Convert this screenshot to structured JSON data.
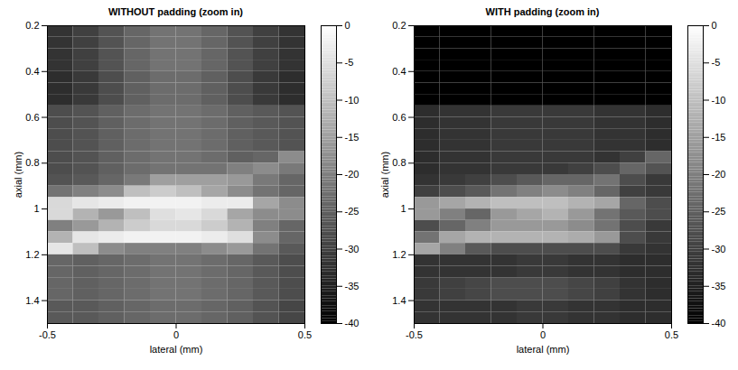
{
  "chart_data": [
    {
      "type": "heatmap",
      "title": "WITHOUT padding (zoom in)",
      "x_label": "lateral (mm)",
      "y_label": "axial (mm)",
      "xlim": [
        -0.5,
        0.5
      ],
      "xticks": [
        -0.5,
        0,
        0.5
      ],
      "ylim": [
        0.2,
        1.5
      ],
      "yticks": [
        0.2,
        0.4,
        0.6,
        0.8,
        1,
        1.2,
        1.4
      ],
      "cells": {
        "x_edges": [
          -0.5,
          -0.4,
          -0.3,
          -0.2,
          -0.1,
          0,
          0.1,
          0.2,
          0.3,
          0.4,
          0.5
        ],
        "y_edges": [
          0.2,
          0.25,
          0.3,
          0.35,
          0.4,
          0.45,
          0.5,
          0.55,
          0.6,
          0.65,
          0.7,
          0.75,
          0.8,
          0.85,
          0.9,
          0.95,
          1,
          1.05,
          1.1,
          1.15,
          1.2,
          1.25,
          1.3,
          1.35,
          1.4,
          1.45,
          1.5
        ],
        "values": [
          [
            -32,
            -30,
            -27,
            -24,
            -22,
            -22,
            -24,
            -27,
            -30,
            -32
          ],
          [
            -32,
            -30,
            -27,
            -24,
            -22,
            -22,
            -24,
            -27,
            -30,
            -32
          ],
          [
            -32,
            -30,
            -27,
            -24,
            -22,
            -22,
            -24,
            -27,
            -30,
            -32
          ],
          [
            -32,
            -30,
            -27,
            -24,
            -22,
            -22,
            -24,
            -27,
            -30,
            -32
          ],
          [
            -33,
            -31,
            -28,
            -25,
            -23,
            -23,
            -25,
            -28,
            -31,
            -33
          ],
          [
            -33,
            -31,
            -28,
            -25,
            -23,
            -23,
            -25,
            -28,
            -31,
            -33
          ],
          [
            -33,
            -31,
            -28,
            -25,
            -23,
            -23,
            -25,
            -28,
            -31,
            -33
          ],
          [
            -28,
            -27,
            -25,
            -23,
            -22,
            -22,
            -23,
            -25,
            -26,
            -27
          ],
          [
            -28,
            -27,
            -25,
            -23,
            -22,
            -22,
            -23,
            -25,
            -26,
            -27
          ],
          [
            -28,
            -27,
            -25,
            -23,
            -22,
            -22,
            -23,
            -25,
            -26,
            -27
          ],
          [
            -28,
            -27,
            -25,
            -23,
            -22,
            -22,
            -23,
            -25,
            -26,
            -27
          ],
          [
            -28,
            -27,
            -25,
            -23,
            -22,
            -22,
            -23,
            -25,
            -24,
            -18
          ],
          [
            -28,
            -27,
            -25,
            -23,
            -22,
            -22,
            -22,
            -20,
            -18,
            -21
          ],
          [
            -27,
            -26,
            -24,
            -21,
            -15,
            -15,
            -15,
            -16,
            -21,
            -24
          ],
          [
            -22,
            -20,
            -18,
            -10,
            -8,
            -10,
            -14,
            -18,
            -22,
            -24
          ],
          [
            -6,
            -4,
            -3,
            -2,
            -2,
            -2,
            -3,
            -3,
            -14,
            -18
          ],
          [
            -6,
            -12,
            -16,
            -10,
            -5,
            -4,
            -6,
            -14,
            -18,
            -18
          ],
          [
            -20,
            -16,
            -12,
            -8,
            -6,
            -6,
            -8,
            -12,
            -20,
            -24
          ],
          [
            -12,
            -4,
            -3,
            -2,
            -2,
            -2,
            -3,
            -5,
            -18,
            -24
          ],
          [
            -4,
            -10,
            -18,
            -20,
            -20,
            -20,
            -18,
            -16,
            -22,
            -26
          ],
          [
            -24,
            -25,
            -24,
            -23,
            -22,
            -22,
            -23,
            -24,
            -26,
            -28
          ],
          [
            -24,
            -25,
            -24,
            -23,
            -22,
            -22,
            -23,
            -24,
            -26,
            -28
          ],
          [
            -24,
            -25,
            -24,
            -23,
            -22,
            -22,
            -23,
            -24,
            -26,
            -28
          ],
          [
            -24,
            -25,
            -24,
            -23,
            -22,
            -22,
            -23,
            -24,
            -26,
            -28
          ],
          [
            -26,
            -26,
            -25,
            -24,
            -23,
            -23,
            -24,
            -25,
            -27,
            -29
          ],
          [
            -26,
            -26,
            -25,
            -24,
            -23,
            -23,
            -24,
            -25,
            -27,
            -29
          ]
        ]
      },
      "colorbar": {
        "range": [
          -40,
          0
        ],
        "ticks": [
          0,
          -5,
          -10,
          -15,
          -20,
          -25,
          -30,
          -35,
          -40
        ]
      }
    },
    {
      "type": "heatmap",
      "title": "WITH padding (zoom in)",
      "x_label": "lateral (mm)",
      "y_label": "axial (mm)",
      "xlim": [
        -0.5,
        0.5
      ],
      "xticks": [
        -0.5,
        0,
        0.5
      ],
      "ylim": [
        0.2,
        1.5
      ],
      "yticks": [
        0.2,
        0.4,
        0.6,
        0.8,
        1,
        1.2,
        1.4
      ],
      "cells": {
        "x_edges": [
          -0.5,
          -0.4,
          -0.3,
          -0.2,
          -0.1,
          0,
          0.1,
          0.2,
          0.3,
          0.4,
          0.5
        ],
        "y_edges": [
          0.2,
          0.25,
          0.3,
          0.35,
          0.4,
          0.45,
          0.5,
          0.55,
          0.6,
          0.65,
          0.7,
          0.75,
          0.8,
          0.85,
          0.9,
          0.95,
          1,
          1.05,
          1.1,
          1.15,
          1.2,
          1.25,
          1.3,
          1.35,
          1.4,
          1.45,
          1.5
        ],
        "values": [
          [
            -40,
            -40,
            -40,
            -40,
            -40,
            -40,
            -40,
            -40,
            -40,
            -40
          ],
          [
            -40,
            -40,
            -40,
            -40,
            -40,
            -40,
            -40,
            -40,
            -40,
            -40
          ],
          [
            -40,
            -40,
            -40,
            -40,
            -40,
            -40,
            -40,
            -40,
            -40,
            -40
          ],
          [
            -40,
            -40,
            -40,
            -40,
            -40,
            -40,
            -40,
            -40,
            -40,
            -40
          ],
          [
            -40,
            -40,
            -40,
            -40,
            -40,
            -40,
            -40,
            -40,
            -40,
            -40
          ],
          [
            -40,
            -40,
            -40,
            -40,
            -40,
            -40,
            -40,
            -40,
            -40,
            -40
          ],
          [
            -40,
            -40,
            -40,
            -40,
            -40,
            -40,
            -40,
            -40,
            -40,
            -40
          ],
          [
            -33,
            -32,
            -32,
            -31,
            -31,
            -31,
            -31,
            -32,
            -32,
            -33
          ],
          [
            -33,
            -32,
            -32,
            -31,
            -31,
            -31,
            -31,
            -32,
            -32,
            -33
          ],
          [
            -33,
            -32,
            -32,
            -31,
            -31,
            -31,
            -31,
            -32,
            -32,
            -33
          ],
          [
            -33,
            -32,
            -32,
            -31,
            -31,
            -31,
            -31,
            -32,
            -32,
            -33
          ],
          [
            -33,
            -32,
            -32,
            -31,
            -31,
            -31,
            -31,
            -32,
            -30,
            -24
          ],
          [
            -33,
            -32,
            -32,
            -31,
            -31,
            -31,
            -30,
            -28,
            -24,
            -27
          ],
          [
            -32,
            -31,
            -30,
            -28,
            -26,
            -24,
            -24,
            -22,
            -28,
            -31
          ],
          [
            -30,
            -28,
            -26,
            -22,
            -20,
            -18,
            -20,
            -24,
            -30,
            -31
          ],
          [
            -16,
            -14,
            -12,
            -10,
            -10,
            -10,
            -12,
            -14,
            -24,
            -28
          ],
          [
            -16,
            -20,
            -24,
            -16,
            -14,
            -12,
            -16,
            -22,
            -26,
            -28
          ],
          [
            -28,
            -24,
            -20,
            -16,
            -16,
            -16,
            -18,
            -22,
            -28,
            -31
          ],
          [
            -22,
            -14,
            -12,
            -12,
            -12,
            -12,
            -13,
            -16,
            -28,
            -31
          ],
          [
            -14,
            -20,
            -26,
            -28,
            -28,
            -28,
            -28,
            -28,
            -31,
            -32
          ],
          [
            -32,
            -32,
            -32,
            -32,
            -31,
            -31,
            -32,
            -32,
            -33,
            -33
          ],
          [
            -32,
            -32,
            -32,
            -32,
            -31,
            -31,
            -32,
            -32,
            -33,
            -33
          ],
          [
            -31,
            -30,
            -29,
            -28,
            -28,
            -28,
            -29,
            -30,
            -32,
            -33
          ],
          [
            -31,
            -30,
            -29,
            -28,
            -28,
            -28,
            -29,
            -30,
            -32,
            -33
          ],
          [
            -32,
            -32,
            -32,
            -32,
            -31,
            -31,
            -32,
            -32,
            -33,
            -33
          ],
          [
            -32,
            -32,
            -32,
            -32,
            -31,
            -31,
            -32,
            -32,
            -33,
            -33
          ]
        ]
      },
      "colorbar": {
        "range": [
          -40,
          0
        ],
        "ticks": [
          0,
          -5,
          -10,
          -15,
          -20,
          -25,
          -30,
          -35,
          -40
        ]
      }
    }
  ]
}
